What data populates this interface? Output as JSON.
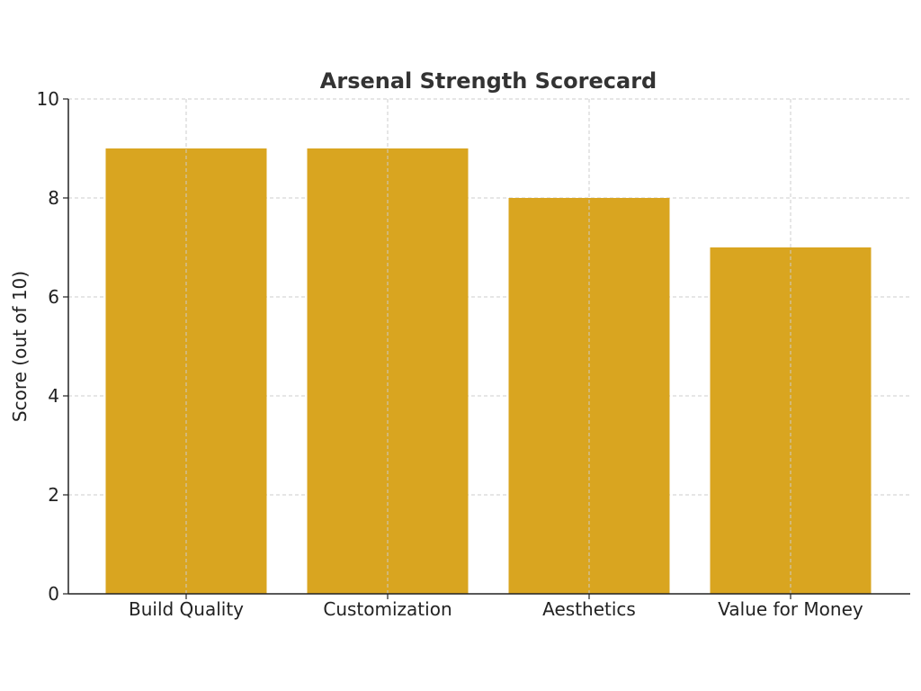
{
  "chart_data": {
    "type": "bar",
    "title": "Arsenal Strength Scorecard",
    "xlabel": "",
    "ylabel": "Score (out of 10)",
    "categories": [
      "Build Quality",
      "Customization",
      "Aesthetics",
      "Value for Money"
    ],
    "values": [
      9,
      9,
      8,
      7
    ],
    "ylim": [
      0,
      10
    ],
    "yticks": [
      0,
      2,
      4,
      6,
      8,
      10
    ],
    "grid": true,
    "bar_color": "#D9A520",
    "legend": null
  }
}
